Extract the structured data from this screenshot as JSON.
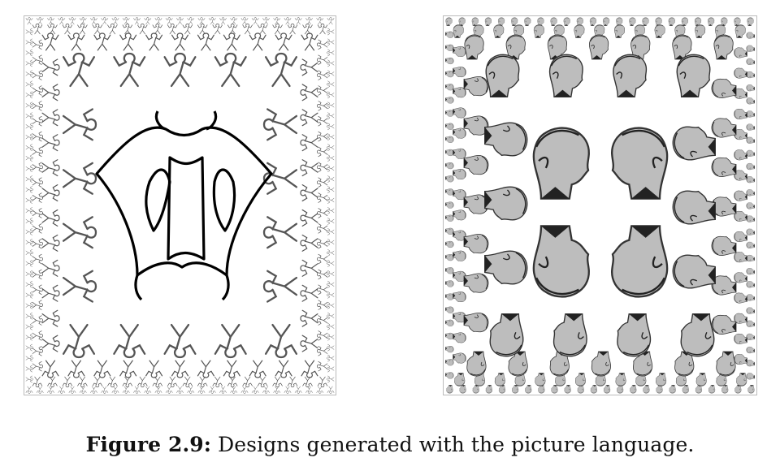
{
  "figure": {
    "label": "Figure 2.9:",
    "caption": "Designs generated with the picture language."
  },
  "panels": [
    {
      "name": "stick-figure-square-limit",
      "content": "line-drawing tessellation"
    },
    {
      "name": "portrait-square-limit",
      "content": "engraved portrait tessellation"
    }
  ]
}
